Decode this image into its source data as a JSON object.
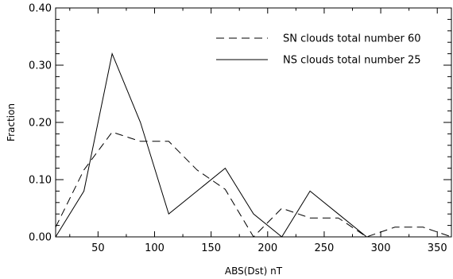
{
  "chart_data": {
    "type": "line",
    "xlabel": "ABS(Dst)  nT",
    "ylabel": "Fraction",
    "xlim": [
      12.5,
      362.5
    ],
    "ylim": [
      0,
      0.4
    ],
    "x_ticks": [
      50,
      100,
      150,
      200,
      250,
      300,
      350
    ],
    "x_tick_labels": [
      "50",
      "100",
      "150",
      "200",
      "250",
      "300",
      "350"
    ],
    "y_ticks": [
      0,
      0.1,
      0.2,
      0.3,
      0.4
    ],
    "y_tick_labels": [
      "0.00",
      "0.10",
      "0.20",
      "0.30",
      "0.40"
    ],
    "grid": false,
    "legend_position": "top-right",
    "series": [
      {
        "name": "SN clouds total number 60",
        "style": "dashed",
        "color": "#000000",
        "x": [
          12.5,
          37.5,
          62.5,
          87.5,
          112.5,
          137.5,
          162.5,
          187.5,
          212.5,
          237.5,
          262.5,
          287.5,
          312.5,
          337.5,
          362.5
        ],
        "y": [
          0.017,
          0.117,
          0.183,
          0.167,
          0.167,
          0.117,
          0.083,
          0.0,
          0.05,
          0.033,
          0.033,
          0.0,
          0.017,
          0.017,
          0.0
        ]
      },
      {
        "name": "NS clouds total number 25",
        "style": "solid",
        "color": "#000000",
        "x": [
          12.5,
          37.5,
          62.5,
          87.5,
          112.5,
          137.5,
          162.5,
          187.5,
          212.5,
          237.5,
          262.5,
          287.5
        ],
        "y": [
          0.0,
          0.08,
          0.32,
          0.2,
          0.04,
          0.08,
          0.12,
          0.04,
          0.0,
          0.08,
          0.04,
          0.0
        ]
      }
    ]
  }
}
